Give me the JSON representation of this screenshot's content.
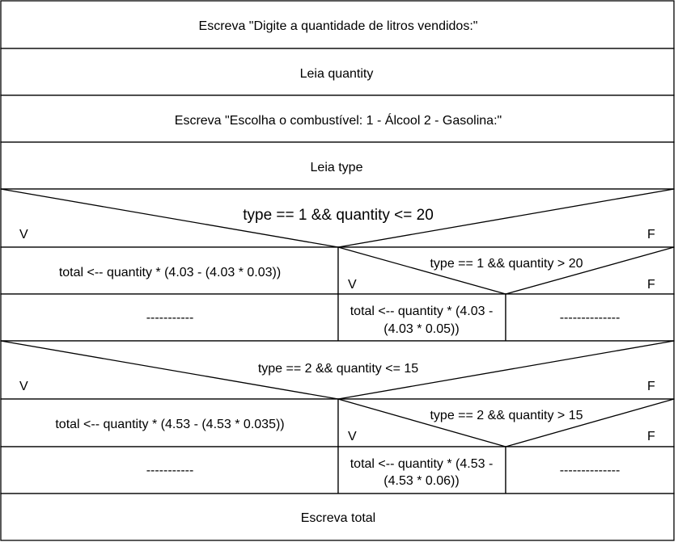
{
  "diagram": {
    "statements": {
      "write_quantity_prompt": "Escreva \"Digite a quantidade de litros vendidos:\"",
      "read_quantity": "Leia quantity",
      "write_type_prompt": "Escreva \"Escolha o combustível: 1 - Álcool 2 - Gasolina:\"",
      "read_type": "Leia type",
      "write_total": "Escreva total"
    },
    "decision1": {
      "condition": "type == 1 && quantity <= 20",
      "true_label": "V",
      "false_label": "F",
      "true_action": "total <-- quantity * (4.03 - (4.03 * 0.03))",
      "nested": {
        "condition": "type == 1 && quantity > 20",
        "true_label": "V",
        "false_label": "F",
        "true_action_line1": "total <-- quantity * (4.03 -",
        "true_action_line2": "(4.03 * 0.05))",
        "false_action": "--------------"
      },
      "empty_action": "-----------"
    },
    "decision2": {
      "condition": "type == 2 && quantity <= 15",
      "true_label": "V",
      "false_label": "F",
      "true_action": "total <-- quantity * (4.53 - (4.53 * 0.035))",
      "nested": {
        "condition": "type == 2 && quantity > 15",
        "true_label": "V",
        "false_label": "F",
        "true_action_line1": "total <-- quantity * (4.53 -",
        "true_action_line2": "(4.53 * 0.06))",
        "false_action": "--------------"
      },
      "empty_action": "-----------"
    }
  }
}
